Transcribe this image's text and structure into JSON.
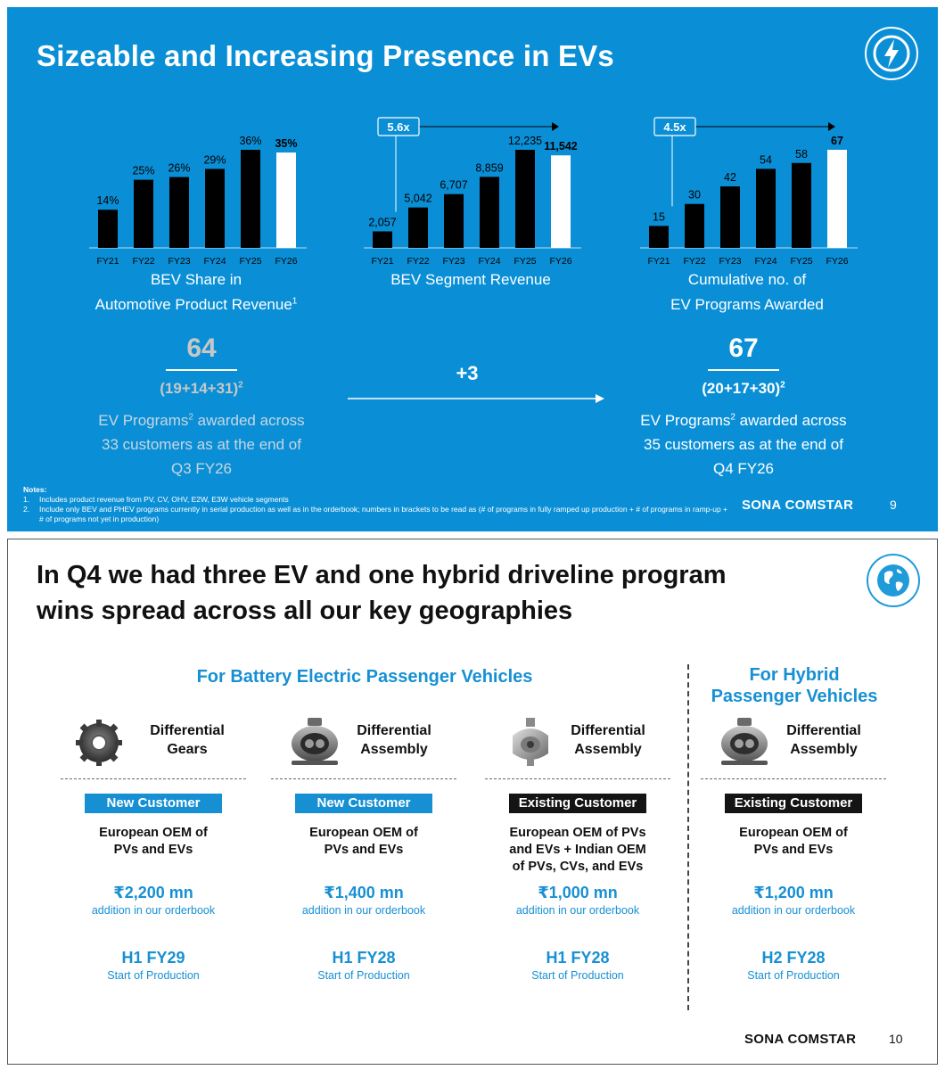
{
  "slide1": {
    "title": "Sizeable and Increasing Presence in EVs",
    "icon": "lightning-bolt-icon",
    "colors": {
      "background": "#0A8FD6",
      "bar": "#000000",
      "highlight_bar": "#FFFFFF",
      "muted_text": "#BFD9EA"
    },
    "chart_data": [
      {
        "type": "bar",
        "title_line1": "BEV Share in",
        "title_line2": "Automotive Product Revenue",
        "title_sup": "1",
        "categories": [
          "FY21",
          "FY22",
          "FY23",
          "FY24",
          "FY25",
          "FY26"
        ],
        "values": [
          14,
          25,
          26,
          29,
          36,
          35
        ],
        "labels": [
          "14%",
          "25%",
          "26%",
          "29%",
          "36%",
          "35%"
        ],
        "highlight_index": 5,
        "ylim": [
          0,
          36
        ]
      },
      {
        "type": "bar",
        "title_line1": "BEV Segment Revenue",
        "title_line2": "",
        "categories": [
          "FY21",
          "FY22",
          "FY23",
          "FY24",
          "FY25",
          "FY26"
        ],
        "values": [
          2057,
          5042,
          6707,
          8859,
          12235,
          11542
        ],
        "labels": [
          "2,057",
          "5,042",
          "6,707",
          "8,859",
          "12,235",
          "11,542"
        ],
        "highlight_index": 5,
        "ylim": [
          0,
          12235
        ],
        "growth_annotation": "5.6x"
      },
      {
        "type": "bar",
        "title_line1": "Cumulative no. of",
        "title_line2": "EV Programs Awarded",
        "categories": [
          "FY21",
          "FY22",
          "FY23",
          "FY24",
          "FY25",
          "FY26"
        ],
        "values": [
          15,
          30,
          42,
          54,
          58,
          67
        ],
        "labels": [
          "15",
          "30",
          "42",
          "54",
          "58",
          "67"
        ],
        "highlight_index": 5,
        "ylim": [
          0,
          67
        ],
        "growth_annotation": "4.5x"
      }
    ],
    "prev": {
      "number": "64",
      "formula": "(19+14+31)",
      "formula_sup": "2",
      "text_a": "EV Programs",
      "text_sup": "2",
      "text_b": " awarded across",
      "line2": "33 customers as at the end of",
      "line3": "Q3 FY26"
    },
    "delta": "+3",
    "curr": {
      "number": "67",
      "formula": "(20+17+30)",
      "formula_sup": "2",
      "text_a": "EV Programs",
      "text_sup": "2",
      "text_b": " awarded across",
      "line2": "35 customers as at the end of",
      "line3": "Q4 FY26"
    },
    "notes": {
      "heading": "Notes:",
      "items": [
        {
          "num": "1.",
          "text": "Includes product revenue from PV, CV, OHV, E2W, E3W vehicle segments"
        },
        {
          "num": "2.",
          "text": "Include only BEV and PHEV programs currently in serial production as well as in the orderbook; numbers in brackets to be read as  (# of programs in fully ramped up production + # of programs in ramp-up + # of programs not yet in production)"
        }
      ]
    },
    "brand": "SONA COMSTAR",
    "page": "9"
  },
  "slide2": {
    "title_line1": "In Q4 we had three EV and one hybrid driveline program",
    "title_line2": "wins spread across all our key geographies",
    "icon": "globe-icon",
    "bev_heading": "For Battery Electric Passenger Vehicles",
    "hybrid_heading_line1": "For Hybrid",
    "hybrid_heading_line2": "Passenger Vehicles",
    "programs": [
      {
        "product_line1": "Differential",
        "product_line2": "Gears",
        "product_icon": "bevel-gear-icon",
        "badge": "New Customer",
        "badge_type": "new",
        "cust_lines": [
          "European OEM of",
          "PVs and EVs"
        ],
        "amount": "₹2,200 mn",
        "amount_sub": "addition in our orderbook",
        "sop": "H1 FY29",
        "sop_sub": "Start of Production"
      },
      {
        "product_line1": "Differential",
        "product_line2": "Assembly",
        "product_icon": "differential-assembly-icon",
        "badge": "New Customer",
        "badge_type": "new",
        "cust_lines": [
          "European OEM of",
          "PVs and EVs"
        ],
        "amount": "₹1,400 mn",
        "amount_sub": "addition in our orderbook",
        "sop": "H1 FY28",
        "sop_sub": "Start of Production"
      },
      {
        "product_line1": "Differential",
        "product_line2": "Assembly",
        "product_icon": "differential-housing-icon",
        "badge": "Existing Customer",
        "badge_type": "exist",
        "cust_lines": [
          "European OEM of PVs",
          "and EVs + Indian OEM",
          "of PVs, CVs, and EVs"
        ],
        "amount": "₹1,000 mn",
        "amount_sub": "addition in our orderbook",
        "sop": "H1 FY28",
        "sop_sub": "Start of Production"
      },
      {
        "product_line1": "Differential",
        "product_line2": "Assembly",
        "product_icon": "differential-assembly-icon",
        "badge": "Existing Customer",
        "badge_type": "exist",
        "cust_lines": [
          "European OEM of",
          "PVs and EVs"
        ],
        "amount": "₹1,200 mn",
        "amount_sub": "addition in our orderbook",
        "sop": "H2 FY28",
        "sop_sub": "Start of Production"
      }
    ],
    "brand": "SONA COMSTAR",
    "page": "10"
  }
}
